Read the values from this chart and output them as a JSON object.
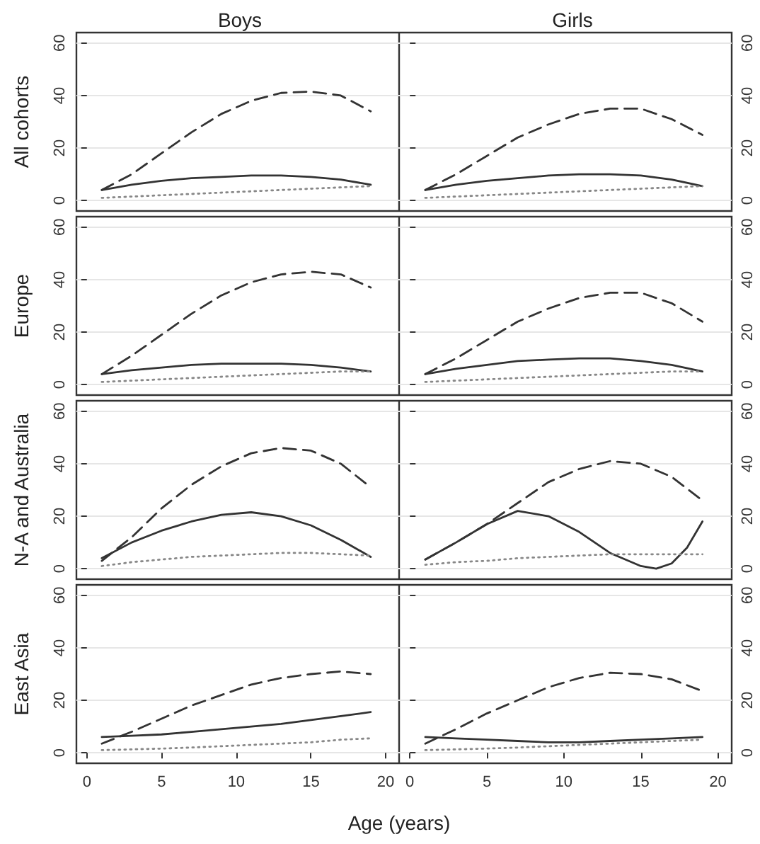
{
  "chart_data": [
    {
      "type": "line",
      "title": "Boys",
      "ylabel": "All cohorts",
      "x": [
        1,
        3,
        5,
        7,
        9,
        11,
        13,
        15,
        17,
        19
      ],
      "xlim": [
        -0.7,
        20.9
      ],
      "xticks": [
        0,
        5,
        10,
        15,
        20
      ],
      "ylim": [
        -4,
        64
      ],
      "yticks": [
        0,
        20,
        40,
        60
      ],
      "grid": "y",
      "tick_labels": "y",
      "series": [
        {
          "color": "#333333",
          "line_style": "dashed",
          "values": [
            4,
            10,
            18,
            26,
            33,
            38,
            41,
            41.5,
            40,
            34
          ]
        },
        {
          "color": "#333333",
          "line_style": "solid",
          "values": [
            4,
            6,
            7.5,
            8.5,
            9,
            9.5,
            9.5,
            9,
            8,
            6
          ]
        },
        {
          "color": "#888888",
          "line_style": "dotted",
          "values": [
            1,
            1.5,
            2,
            2.5,
            3,
            3.5,
            4,
            4.5,
            5,
            5.5
          ]
        }
      ]
    },
    {
      "type": "line",
      "title": "Girls",
      "x": [
        1,
        3,
        5,
        7,
        9,
        11,
        13,
        15,
        17,
        19
      ],
      "xlim": [
        -0.7,
        20.9
      ],
      "xticks": [
        0,
        5,
        10,
        15,
        20
      ],
      "ylim": [
        -4,
        64
      ],
      "yticks": [
        0,
        20,
        40,
        60
      ],
      "grid": "y",
      "tick_labels": "y",
      "series": [
        {
          "color": "#333333",
          "line_style": "dashed",
          "values": [
            4,
            10,
            17,
            24,
            29,
            33,
            35,
            35,
            31,
            25
          ]
        },
        {
          "color": "#333333",
          "line_style": "solid",
          "values": [
            4,
            6,
            7.5,
            8.5,
            9.5,
            10,
            10,
            9.5,
            8,
            5.5
          ]
        },
        {
          "color": "#888888",
          "line_style": "dotted",
          "values": [
            1,
            1.5,
            2,
            2.5,
            3,
            3.5,
            4,
            4.5,
            5,
            5.5
          ]
        }
      ]
    },
    {
      "type": "line",
      "ylabel": "Europe",
      "x": [
        1,
        3,
        5,
        7,
        9,
        11,
        13,
        15,
        17,
        19
      ],
      "xlim": [
        -0.7,
        20.9
      ],
      "xticks": [
        0,
        5,
        10,
        15,
        20
      ],
      "ylim": [
        -4,
        64
      ],
      "yticks": [
        0,
        20,
        40,
        60
      ],
      "grid": "y",
      "tick_labels": "y",
      "series": [
        {
          "color": "#333333",
          "line_style": "dashed",
          "values": [
            4,
            11,
            19,
            27,
            34,
            39,
            42,
            43,
            42,
            37
          ]
        },
        {
          "color": "#333333",
          "line_style": "solid",
          "values": [
            4,
            5.5,
            6.5,
            7.5,
            8,
            8,
            8,
            7.5,
            6.5,
            5
          ]
        },
        {
          "color": "#888888",
          "line_style": "dotted",
          "values": [
            1,
            1.5,
            2,
            2.5,
            3,
            3.5,
            4,
            4.5,
            5,
            5
          ]
        }
      ]
    },
    {
      "type": "line",
      "x": [
        1,
        3,
        5,
        7,
        9,
        11,
        13,
        15,
        17,
        19
      ],
      "xlim": [
        -0.7,
        20.9
      ],
      "xticks": [
        0,
        5,
        10,
        15,
        20
      ],
      "ylim": [
        -4,
        64
      ],
      "yticks": [
        0,
        20,
        40,
        60
      ],
      "grid": "y",
      "tick_labels": "y",
      "series": [
        {
          "color": "#333333",
          "line_style": "dashed",
          "values": [
            4,
            10,
            17,
            24,
            29,
            33,
            35,
            35,
            31,
            24
          ]
        },
        {
          "color": "#333333",
          "line_style": "solid",
          "values": [
            4,
            6,
            7.5,
            9,
            9.5,
            10,
            10,
            9,
            7.5,
            5
          ]
        },
        {
          "color": "#888888",
          "line_style": "dotted",
          "values": [
            1,
            1.5,
            2,
            2.5,
            3,
            3.5,
            4,
            4.5,
            5,
            5
          ]
        }
      ]
    },
    {
      "type": "line",
      "ylabel": "N-A and Australia",
      "x": [
        1,
        3,
        5,
        7,
        9,
        11,
        13,
        15,
        17,
        19
      ],
      "xlim": [
        -0.7,
        20.9
      ],
      "xticks": [
        0,
        5,
        10,
        15,
        20
      ],
      "ylim": [
        -4,
        64
      ],
      "yticks": [
        0,
        20,
        40,
        60
      ],
      "grid": "y",
      "tick_labels": "y",
      "series": [
        {
          "color": "#333333",
          "line_style": "dashed",
          "values": [
            3,
            12,
            23,
            32,
            39,
            44,
            46,
            45,
            40,
            31
          ]
        },
        {
          "color": "#333333",
          "line_style": "solid",
          "values": [
            4,
            10,
            14.5,
            18,
            20.5,
            21.5,
            20,
            16.5,
            11,
            4.5
          ]
        },
        {
          "color": "#888888",
          "line_style": "dotted",
          "values": [
            1,
            2.5,
            3.5,
            4.5,
            5,
            5.5,
            6,
            6,
            5.5,
            5
          ]
        }
      ]
    },
    {
      "type": "line",
      "x": [
        1,
        3,
        5,
        7,
        9,
        11,
        13,
        15,
        17,
        19
      ],
      "xlim": [
        -0.7,
        20.9
      ],
      "xticks": [
        0,
        5,
        10,
        15,
        20
      ],
      "ylim": [
        -4,
        64
      ],
      "yticks": [
        0,
        20,
        40,
        60
      ],
      "grid": "y",
      "tick_labels": "y",
      "series": [
        {
          "color": "#333333",
          "line_style": "dashed",
          "values": [
            3.5,
            10,
            17,
            25,
            33,
            38,
            41,
            40,
            35,
            26
          ]
        },
        {
          "color": "#333333",
          "line_style": "solid",
          "x": [
            1,
            3,
            5,
            7,
            9,
            11,
            13,
            15,
            16,
            17,
            18,
            19
          ],
          "values": [
            3.5,
            10,
            17,
            22,
            20,
            14,
            6,
            1,
            0,
            2,
            8,
            18
          ]
        },
        {
          "color": "#888888",
          "line_style": "dotted",
          "values": [
            1.5,
            2.5,
            3,
            4,
            4.5,
            5,
            5.5,
            5.5,
            5.5,
            5.5
          ]
        }
      ]
    },
    {
      "type": "line",
      "ylabel": "East Asia",
      "xlabel": "Age (years)",
      "x": [
        1,
        3,
        5,
        7,
        9,
        11,
        13,
        15,
        17,
        19
      ],
      "xlim": [
        -0.7,
        20.9
      ],
      "xticks": [
        0,
        5,
        10,
        15,
        20
      ],
      "ylim": [
        -4,
        64
      ],
      "yticks": [
        0,
        20,
        40,
        60
      ],
      "grid": "y",
      "series": [
        {
          "color": "#333333",
          "line_style": "dashed",
          "values": [
            3.5,
            8,
            13,
            18,
            22,
            26,
            28.5,
            30,
            31,
            30
          ]
        },
        {
          "color": "#333333",
          "line_style": "solid",
          "values": [
            6,
            6.5,
            7,
            8,
            9,
            10,
            11,
            12.5,
            14,
            15.5
          ]
        },
        {
          "color": "#888888",
          "line_style": "dotted",
          "values": [
            1,
            1.3,
            1.6,
            2,
            2.5,
            3,
            3.5,
            4,
            5,
            5.5
          ]
        }
      ]
    },
    {
      "type": "line",
      "x": [
        1,
        3,
        5,
        7,
        9,
        11,
        13,
        15,
        17,
        19
      ],
      "xlim": [
        -0.7,
        20.9
      ],
      "xticks": [
        0,
        5,
        10,
        15,
        20
      ],
      "ylim": [
        -4,
        64
      ],
      "yticks": [
        0,
        20,
        40,
        60
      ],
      "grid": "y",
      "series": [
        {
          "color": "#333333",
          "line_style": "dashed",
          "values": [
            3.5,
            9,
            15,
            20,
            25,
            28.5,
            30.5,
            30,
            28,
            23.5
          ]
        },
        {
          "color": "#333333",
          "line_style": "solid",
          "values": [
            6,
            5.5,
            5,
            4.5,
            4,
            4,
            4.5,
            5,
            5.5,
            6
          ]
        },
        {
          "color": "#888888",
          "line_style": "dotted",
          "values": [
            1,
            1.3,
            1.6,
            2,
            2.5,
            3,
            3.5,
            4,
            4.5,
            5
          ]
        }
      ]
    }
  ]
}
